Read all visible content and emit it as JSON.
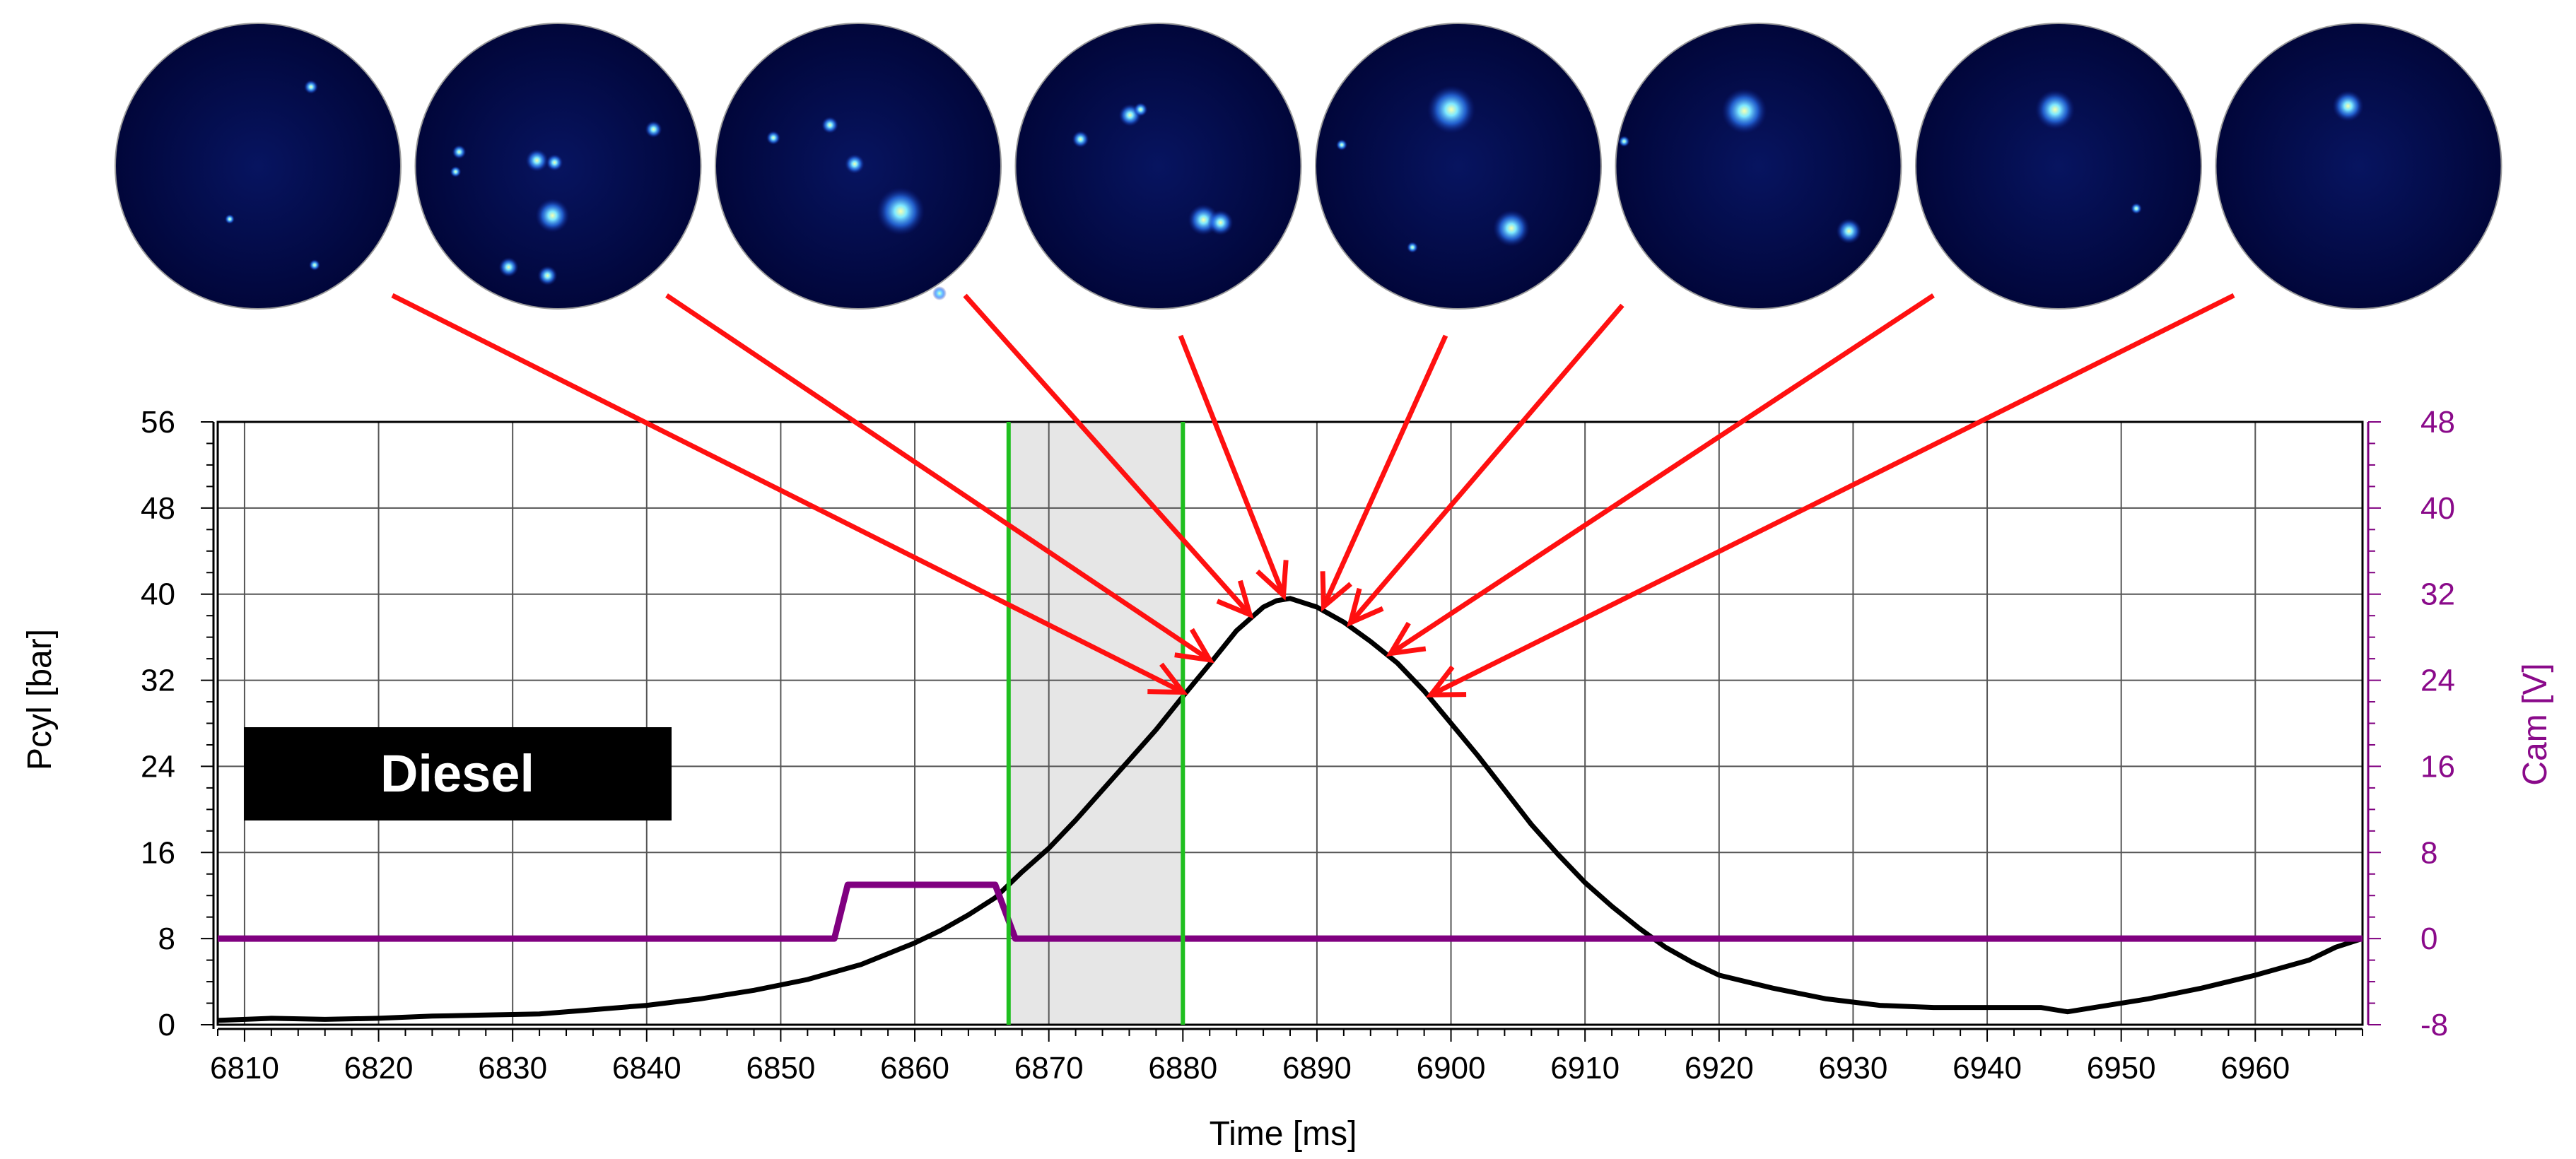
{
  "chart_data": {
    "type": "line",
    "title": "",
    "label_box": "Diesel",
    "xlabel": "Time [ms]",
    "ylabel_left": "Pcyl [bar]",
    "ylabel_right": "Cam [V]",
    "xlim": [
      6808,
      6968
    ],
    "ylim_left": [
      0,
      56
    ],
    "ylim_right": [
      -8,
      48
    ],
    "x_ticks": [
      6810,
      6820,
      6830,
      6840,
      6850,
      6860,
      6870,
      6880,
      6890,
      6900,
      6910,
      6920,
      6930,
      6940,
      6950,
      6960
    ],
    "y_ticks_left": [
      0,
      8,
      16,
      24,
      32,
      40,
      48,
      56
    ],
    "y_ticks_right": [
      -8,
      0,
      8,
      16,
      24,
      32,
      40,
      48
    ],
    "grid": true,
    "highlight_region": [
      6867,
      6880
    ],
    "highlight_lines": [
      6867,
      6880
    ],
    "series": [
      {
        "axis": "left",
        "color": "#000000",
        "x": [
          6808,
          6812,
          6816,
          6820,
          6824,
          6828,
          6832,
          6836,
          6840,
          6844,
          6848,
          6852,
          6856,
          6858,
          6860,
          6862,
          6864,
          6866,
          6867,
          6868,
          6870,
          6872,
          6874,
          6876,
          6878,
          6880,
          6882,
          6884,
          6886,
          6887,
          6888,
          6890,
          6892,
          6894,
          6896,
          6898,
          6900,
          6902,
          6904,
          6906,
          6908,
          6910,
          6912,
          6914,
          6916,
          6918,
          6920,
          6924,
          6928,
          6932,
          6936,
          6940,
          6944,
          6946,
          6948,
          6952,
          6956,
          6960,
          6964,
          6966,
          6968
        ],
        "y": [
          0.4,
          0.6,
          0.5,
          0.6,
          0.8,
          0.9,
          1.0,
          1.4,
          1.8,
          2.4,
          3.2,
          4.2,
          5.6,
          6.6,
          7.6,
          8.8,
          10.2,
          11.8,
          13.0,
          14.2,
          16.4,
          19.0,
          21.8,
          24.6,
          27.4,
          30.5,
          33.5,
          36.6,
          38.8,
          39.4,
          39.6,
          38.8,
          37.4,
          35.6,
          33.6,
          31.0,
          28.0,
          25.0,
          21.8,
          18.6,
          15.8,
          13.2,
          11.0,
          9.0,
          7.2,
          5.8,
          4.6,
          3.4,
          2.4,
          1.8,
          1.6,
          1.6,
          1.6,
          1.2,
          1.6,
          2.4,
          3.4,
          4.6,
          6.0,
          7.2,
          8.0
        ]
      },
      {
        "axis": "right",
        "color": "#800080",
        "x": [
          6808,
          6854,
          6855,
          6866,
          6867.5,
          6968
        ],
        "y": [
          0,
          0,
          5,
          5,
          0,
          0
        ]
      }
    ],
    "image_markers": [
      6880,
      6882,
      6885,
      6888,
      6891,
      6894,
      6897
    ]
  },
  "thumbnails": {
    "count": 8,
    "colors": {
      "background": "#02093f",
      "spot_core": "#f4ff9a",
      "spot_glow": "#2f9bff"
    }
  },
  "colors": {
    "pressure": "#000000",
    "cam": "#800080",
    "arrows": "#ff1010",
    "highlight_lines": "#1fbf1f",
    "highlight_fill": "#e6e6e6",
    "grid": "#555555"
  }
}
